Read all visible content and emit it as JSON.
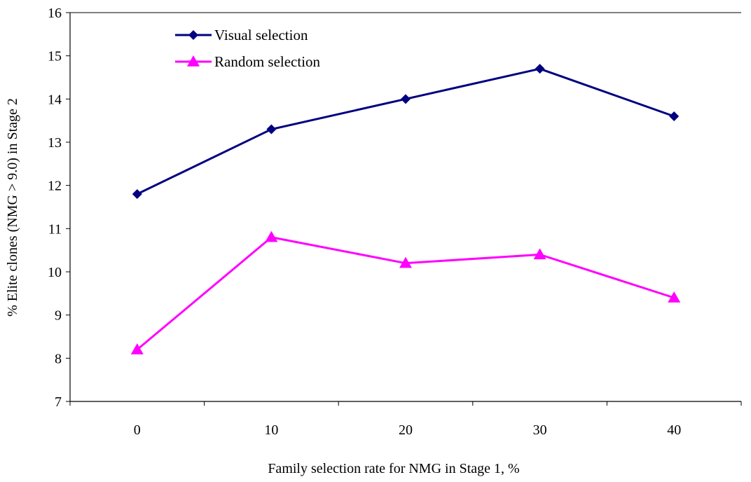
{
  "chart_data": {
    "type": "line",
    "title": "",
    "xlabel": "Family selection rate for NMG in Stage 1, %",
    "ylabel": "% Elite clones (NMG > 9.0) in Stage 2",
    "categories": [
      "0",
      "10",
      "20",
      "30",
      "40"
    ],
    "x": [
      0,
      10,
      20,
      30,
      40
    ],
    "ylim": [
      7,
      16
    ],
    "yticks": [
      "7",
      "8",
      "9",
      "10",
      "11",
      "12",
      "13",
      "14",
      "15",
      "16"
    ],
    "grid": false,
    "legend_position": "top-left",
    "series": [
      {
        "name": "Visual selection",
        "values": [
          11.8,
          13.3,
          14.0,
          14.7,
          13.6
        ],
        "color": "#000080",
        "marker": "diamond"
      },
      {
        "name": "Random selection",
        "values": [
          8.2,
          10.8,
          10.2,
          10.4,
          9.4
        ],
        "color": "#ff00ff",
        "marker": "triangle"
      }
    ]
  }
}
